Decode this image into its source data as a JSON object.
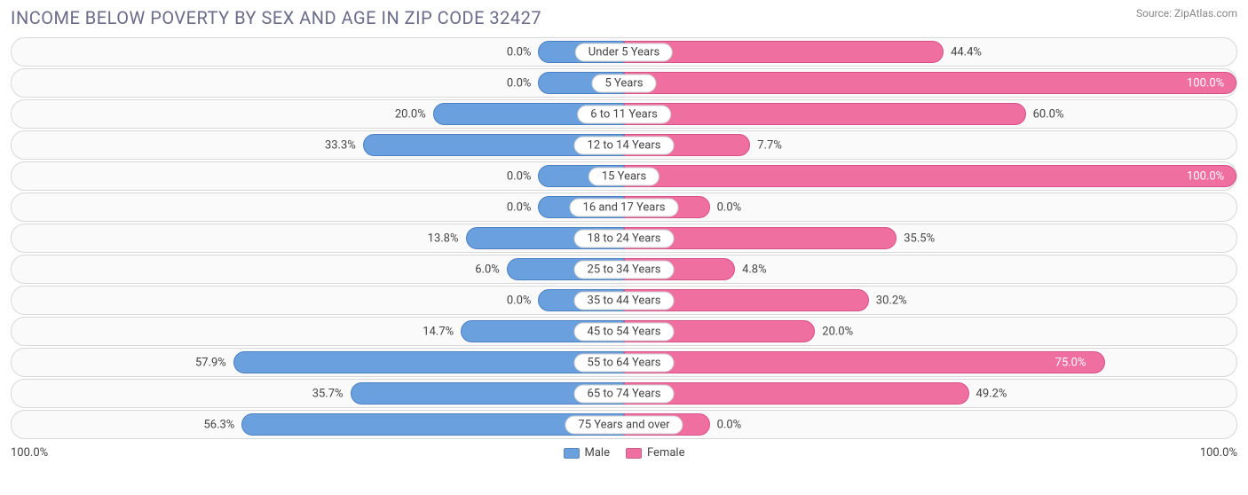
{
  "title": "INCOME BELOW POVERTY BY SEX AND AGE IN ZIP CODE 32427",
  "source": "Source: ZipAtlas.com",
  "axis_left": "100.0%",
  "axis_right": "100.0%",
  "legend": {
    "male": "Male",
    "female": "Female"
  },
  "colors": {
    "male_fill": "#6aa0de",
    "male_border": "#4a80c0",
    "female_fill": "#ef6fa0",
    "female_border": "#d85088",
    "row_border": "#d8d8d8",
    "row_bg": "#fafafa",
    "text": "#444444",
    "title": "#6b6b8a"
  },
  "min_bar_pct": 14,
  "rows": [
    {
      "category": "Under 5 Years",
      "male": 0.0,
      "female": 44.4
    },
    {
      "category": "5 Years",
      "male": 0.0,
      "female": 100.0
    },
    {
      "category": "6 to 11 Years",
      "male": 20.0,
      "female": 60.0
    },
    {
      "category": "12 to 14 Years",
      "male": 33.3,
      "female": 7.7
    },
    {
      "category": "15 Years",
      "male": 0.0,
      "female": 100.0
    },
    {
      "category": "16 and 17 Years",
      "male": 0.0,
      "female": 0.0
    },
    {
      "category": "18 to 24 Years",
      "male": 13.8,
      "female": 35.5
    },
    {
      "category": "25 to 34 Years",
      "male": 6.0,
      "female": 4.8
    },
    {
      "category": "35 to 44 Years",
      "male": 0.0,
      "female": 30.2
    },
    {
      "category": "45 to 54 Years",
      "male": 14.7,
      "female": 20.0
    },
    {
      "category": "55 to 64 Years",
      "male": 57.9,
      "female": 75.0
    },
    {
      "category": "65 to 74 Years",
      "male": 35.7,
      "female": 49.2
    },
    {
      "category": "75 Years and over",
      "male": 56.3,
      "female": 0.0
    }
  ]
}
